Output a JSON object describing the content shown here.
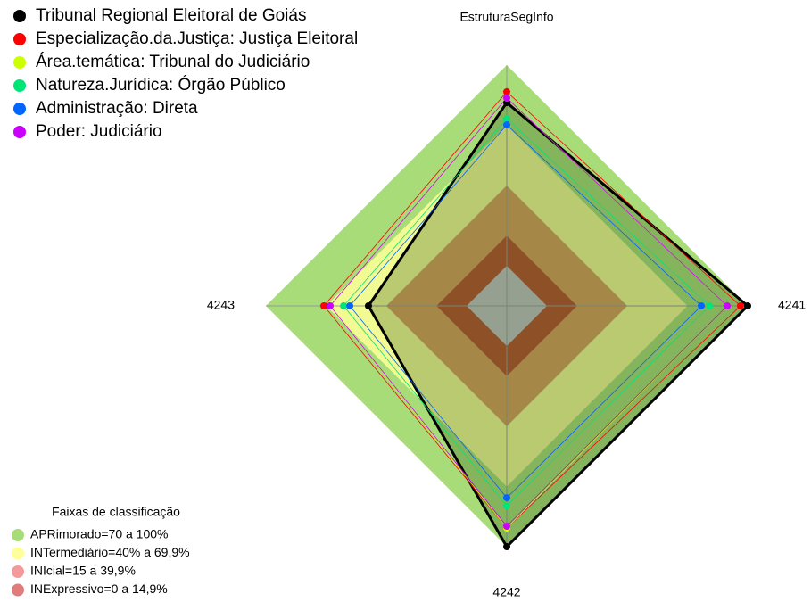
{
  "chart_data": {
    "type": "radar",
    "categories": [
      "EstruturaSegInfo",
      "4241",
      "4242",
      "4243"
    ],
    "rlim": [
      0,
      100
    ],
    "series": [
      {
        "name": "Tribunal Regional Eleitoral de Goiás",
        "color": "#000000",
        "values": [
          81.3,
          100,
          100,
          48.9
        ]
      },
      {
        "name": "Especialização.da.Justiça: Justiça Eleitoral",
        "color": "#ff0000",
        "values": [
          86.7,
          96.4,
          90.7,
          71.1
        ]
      },
      {
        "name": "Área.temática: Tribunal do Judiciário",
        "color": "#ccff00",
        "values": [
          83.6,
          89.8,
          90.7,
          68
        ]
      },
      {
        "name": "Natureza.Jurídica: Órgão Público",
        "color": "#00e676",
        "values": [
          73.3,
          80.9,
          79.6,
          61.3
        ]
      },
      {
        "name": "Administração: Direta",
        "color": "#0066ff",
        "values": [
          70.2,
          76.9,
          75.6,
          58.2
        ]
      },
      {
        "name": "Poder: Judiciário",
        "color": "#cc00ff",
        "values": [
          83.6,
          89.8,
          89.8,
          68
        ]
      }
    ],
    "bands_title": "Faixas de classificação",
    "bands": [
      {
        "label": "APRimorado=70 a 100%",
        "color": "#a8dc78",
        "min": 70,
        "max": 100
      },
      {
        "label": "INTermediário=40% a 69,9%",
        "color": "#ffff99",
        "min": 40,
        "max": 70
      },
      {
        "label": "INIcial=15 a 39,9%",
        "color": "#f49a9a",
        "min": 15,
        "max": 40
      },
      {
        "label": "INExpressivo=0 a 14,9%",
        "color": "#e07c7c",
        "min": 0,
        "max": 15
      }
    ]
  }
}
